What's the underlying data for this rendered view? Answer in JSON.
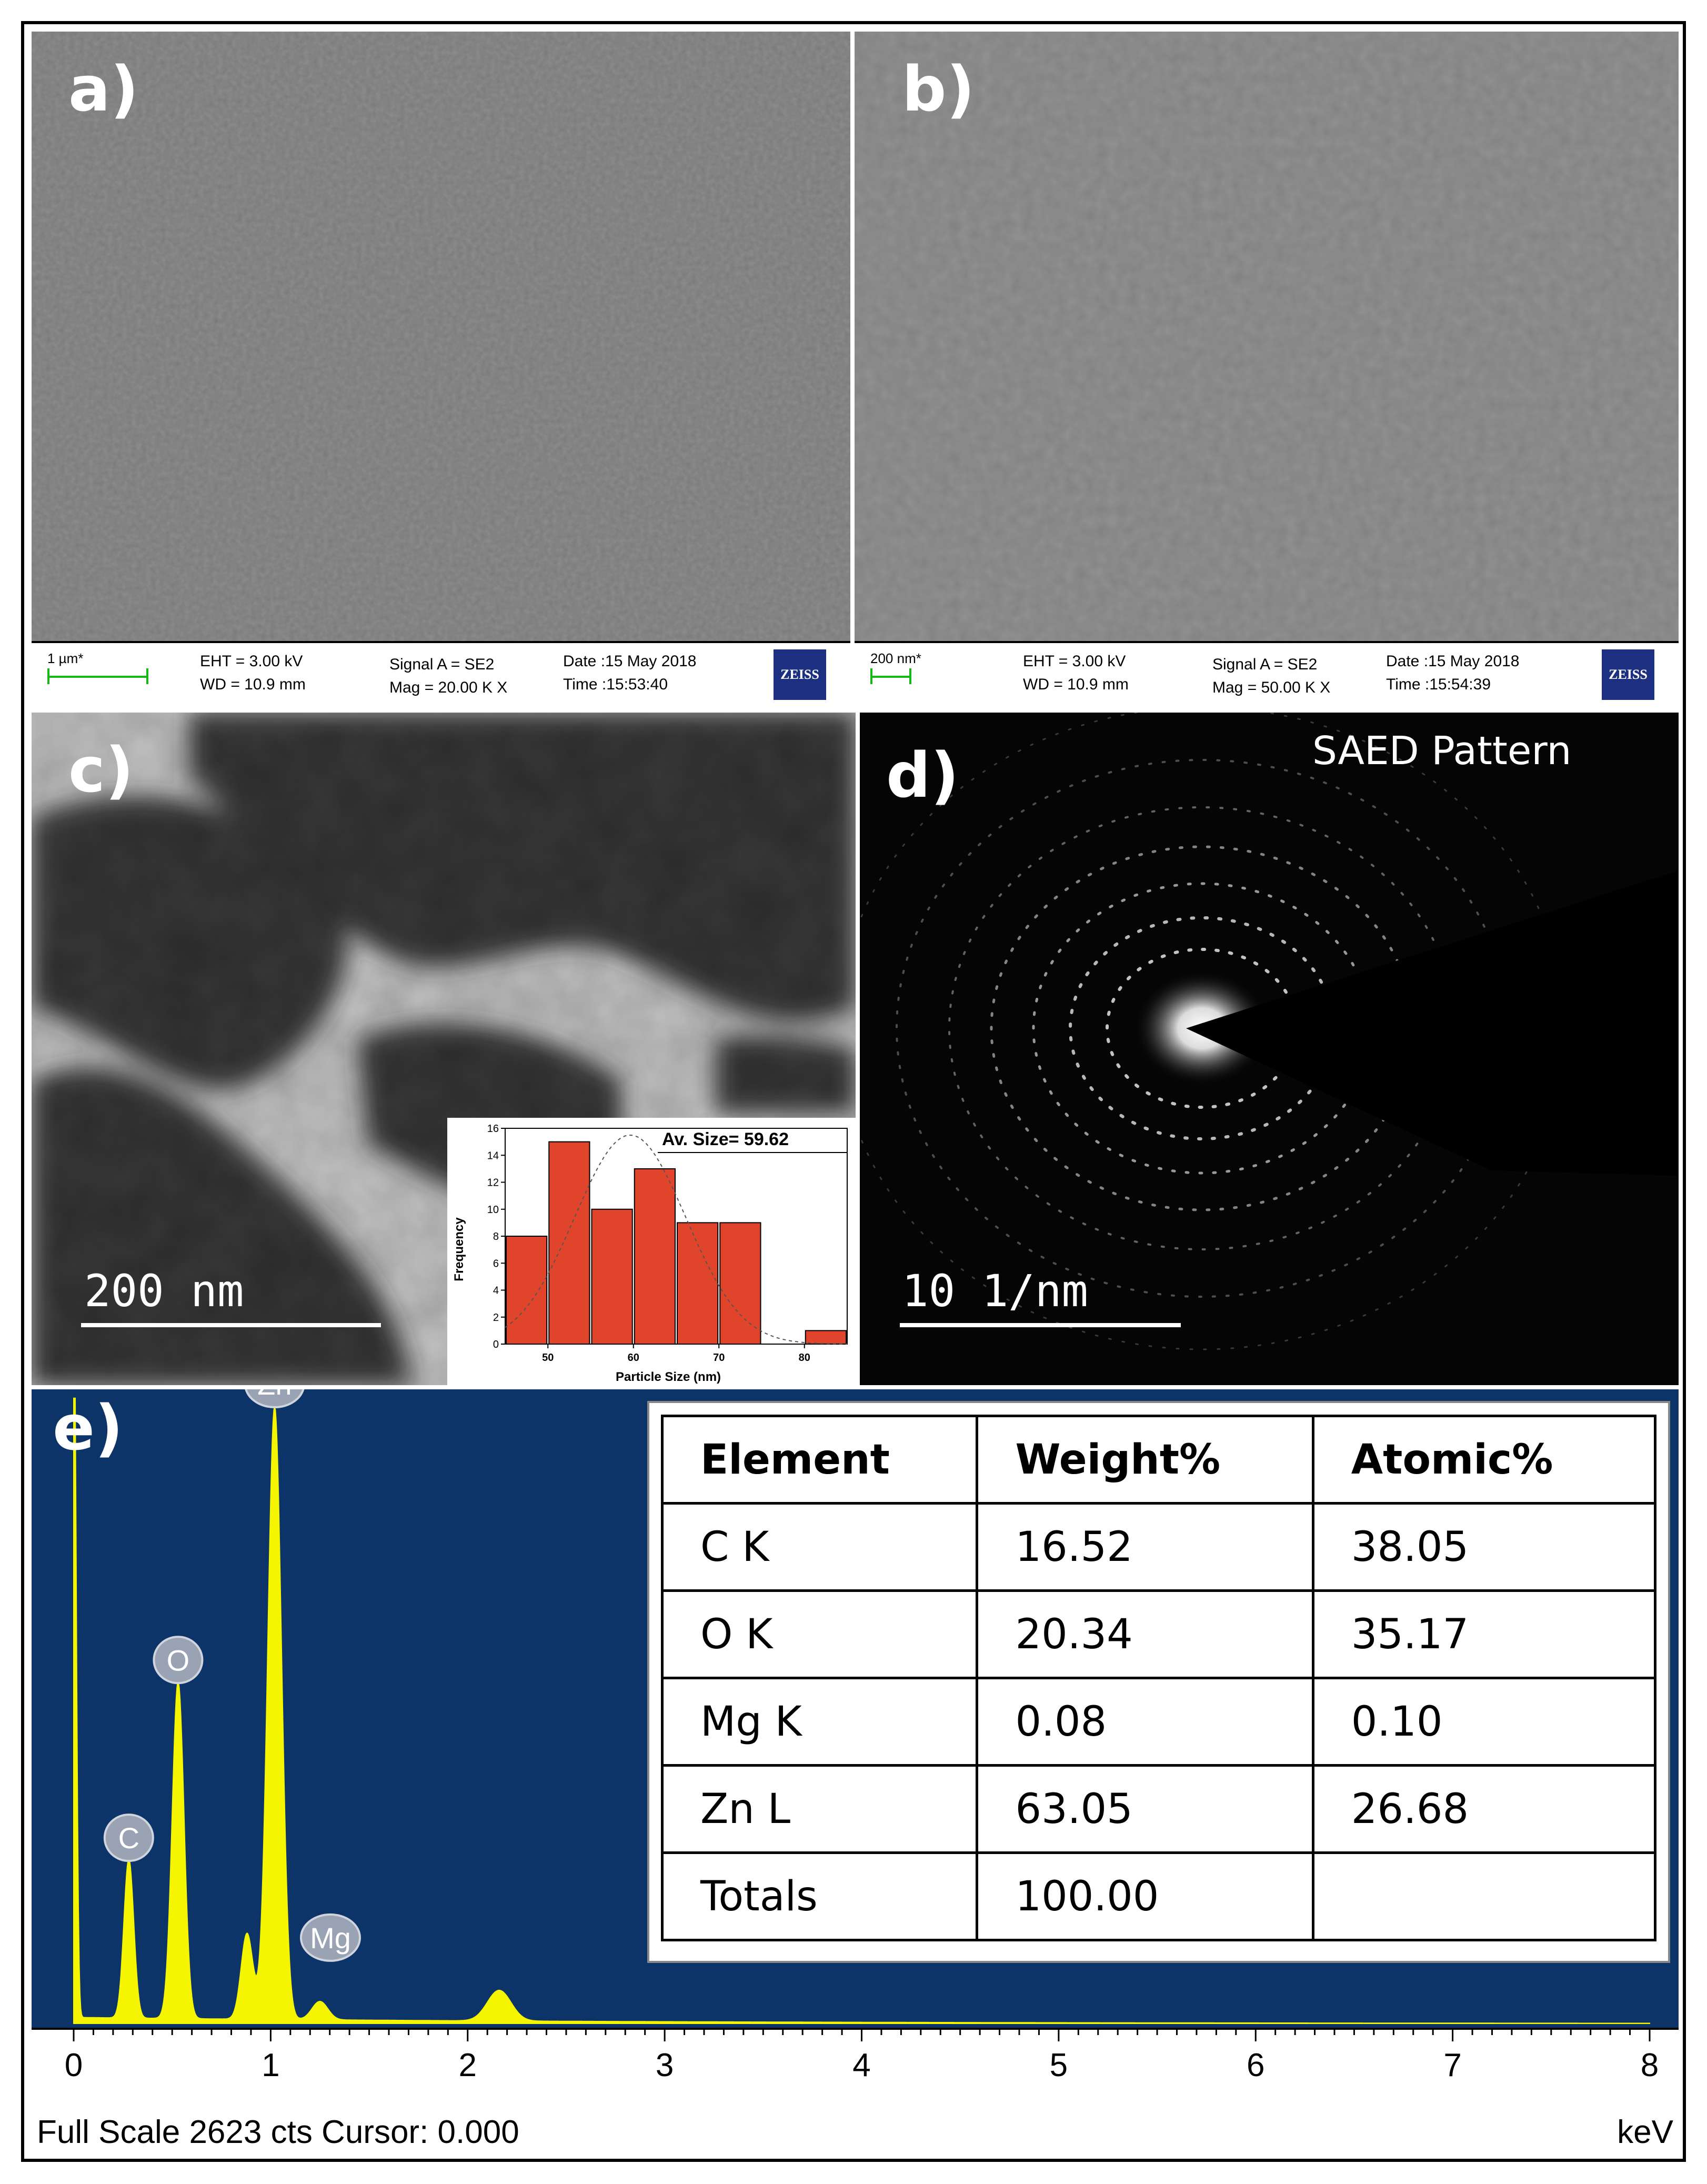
{
  "panels": {
    "a": {
      "label": "a)",
      "info": {
        "scale": "1 µm*",
        "eht": "EHT =  3.00 kV",
        "wd": "WD = 10.9 mm",
        "signal": "Signal A = SE2",
        "mag": "Mag =   20.00 K X",
        "date": "Date :15 May 2018",
        "time": "Time :15:53:40",
        "logo": "ZEISS"
      }
    },
    "b": {
      "label": "b)",
      "info": {
        "scale": "200 nm*",
        "eht": "EHT =  3.00 kV",
        "wd": "WD = 10.9 mm",
        "signal": "Signal A = SE2",
        "mag": "Mag =   50.00 K X",
        "date": "Date :15 May 2018",
        "time": "Time :15:54:39",
        "logo": "ZEISS"
      }
    },
    "c": {
      "label": "c)",
      "scalebar": "200 nm"
    },
    "d": {
      "label": "d)",
      "title": "SAED Pattern",
      "scalebar": "10 1/nm"
    },
    "e": {
      "label": "e)",
      "footer_left": "Full Scale 2623 cts Cursor: 0.000",
      "footer_right": "keV"
    }
  },
  "chart_data": [
    {
      "type": "bar",
      "annotation": "Av. Size= 59.62",
      "xlabel": "Particle Size (nm)",
      "ylabel": "Frequency",
      "categories": [
        47.5,
        52.5,
        57.5,
        62.5,
        67.5,
        72.5,
        82.5
      ],
      "values": [
        8,
        15,
        10,
        13,
        9,
        9,
        1
      ],
      "xlim": [
        45,
        85
      ],
      "ylim": [
        0,
        16
      ],
      "xticks": [
        50,
        60,
        70,
        80
      ],
      "yticks": [
        0,
        2,
        4,
        6,
        8,
        10,
        12,
        14,
        16
      ],
      "bar_color": "#e0442a",
      "fit": "dashed gaussian"
    },
    {
      "type": "line",
      "xlabel": "keV",
      "xlim": [
        0,
        8
      ],
      "xticks": [
        0,
        1,
        2,
        3,
        4,
        5,
        6,
        7,
        8
      ],
      "series_color": "#f5f500",
      "background": "#0c3468",
      "peaks": [
        {
          "label": "C",
          "x": 0.28,
          "rel_height": 0.26
        },
        {
          "label": "O",
          "x": 0.53,
          "rel_height": 0.55
        },
        {
          "label": "Zn",
          "x": 1.02,
          "rel_height": 1.0
        },
        {
          "label": "Mg",
          "x": 1.25,
          "rel_height": 0.03
        }
      ]
    },
    {
      "type": "table",
      "columns": [
        "Element",
        "Weight%",
        "Atomic%"
      ],
      "rows": [
        [
          "C K",
          "16.52",
          "38.05"
        ],
        [
          "O K",
          "20.34",
          "35.17"
        ],
        [
          "Mg K",
          "0.08",
          "0.10"
        ],
        [
          "Zn L",
          "63.05",
          "26.68"
        ],
        [
          "Totals",
          "100.00",
          ""
        ]
      ]
    }
  ]
}
